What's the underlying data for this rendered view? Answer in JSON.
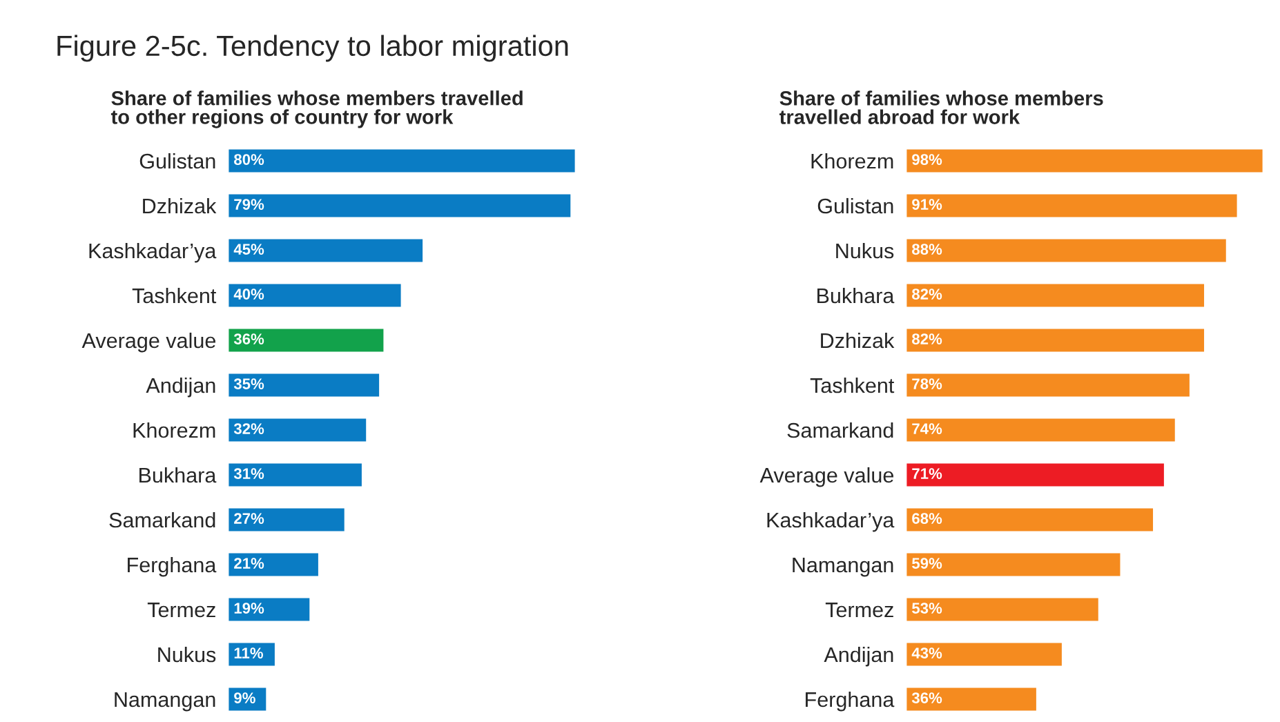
{
  "chart_data": [
    {
      "type": "bar",
      "orientation": "horizontal",
      "title": "Figure 2-5c. Tendency to labor migration",
      "subtitle": "Share of families whose members travelled\nto other regions of country for work",
      "categories": [
        "Gulistan",
        "Dzhizak",
        "Kashkadar’ya",
        "Tashkent",
        "Average value",
        "Andijan",
        "Khorezm",
        "Bukhara",
        "Samarkand",
        "Ferghana",
        "Termez",
        "Nukus",
        "Namangan"
      ],
      "values": [
        80,
        79,
        45,
        40,
        36,
        35,
        32,
        31,
        27,
        21,
        19,
        11,
        9
      ],
      "colors": [
        "#0a7cc4",
        "#0a7cc4",
        "#0a7cc4",
        "#0a7cc4",
        "#12a24b",
        "#0a7cc4",
        "#0a7cc4",
        "#0a7cc4",
        "#0a7cc4",
        "#0a7cc4",
        "#0a7cc4",
        "#0a7cc4",
        "#0a7cc4"
      ],
      "value_labels": [
        "80%",
        "79%",
        "45%",
        "40%",
        "36%",
        "35%",
        "32%",
        "31%",
        "27%",
        "21%",
        "19%",
        "11%",
        "9%"
      ],
      "legend": false,
      "grid": false
    },
    {
      "type": "bar",
      "orientation": "horizontal",
      "subtitle": "Share of families whose members\ntravelled abroad for work",
      "categories": [
        "Khorezm",
        "Gulistan",
        "Nukus",
        "Bukhara",
        "Dzhizak",
        "Tashkent",
        "Samarkand",
        "Average value",
        "Kashkadar’ya",
        "Namangan",
        "Termez",
        "Andijan",
        "Ferghana"
      ],
      "values": [
        98,
        91,
        88,
        82,
        82,
        78,
        74,
        71,
        68,
        59,
        53,
        43,
        36
      ],
      "colors": [
        "#f58b1f",
        "#f58b1f",
        "#f58b1f",
        "#f58b1f",
        "#f58b1f",
        "#f58b1f",
        "#f58b1f",
        "#ed1c24",
        "#f58b1f",
        "#f58b1f",
        "#f58b1f",
        "#f58b1f",
        "#f58b1f"
      ],
      "value_labels": [
        "98%",
        "91%",
        "88%",
        "82%",
        "82%",
        "78%",
        "74%",
        "71%",
        "68%",
        "59%",
        "53%",
        "43%",
        "36%"
      ],
      "legend": false,
      "grid": false
    }
  ]
}
